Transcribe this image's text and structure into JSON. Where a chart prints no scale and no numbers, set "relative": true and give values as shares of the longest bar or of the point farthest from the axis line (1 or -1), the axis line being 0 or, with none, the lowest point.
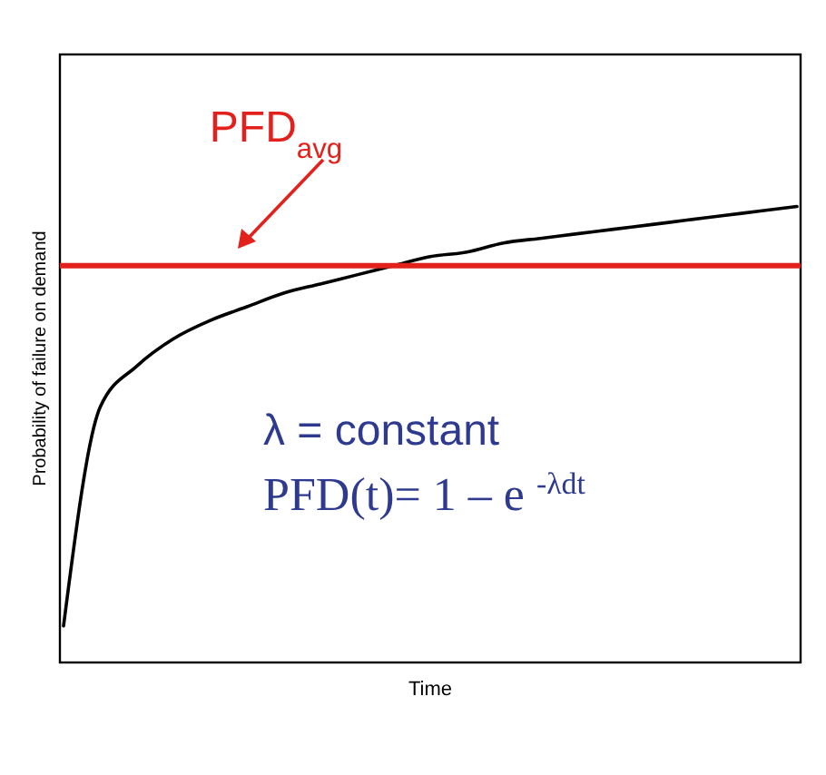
{
  "chart_data": {
    "type": "line",
    "relative": true,
    "xlabel": "Time",
    "ylabel": "Probability of failure on demand",
    "categories": [
      null,
      null,
      null,
      null,
      null,
      null,
      null,
      null,
      null,
      null,
      null,
      null,
      null,
      null,
      null,
      null,
      null,
      null,
      null,
      null,
      null
    ],
    "series": [
      {
        "color": "#000000",
        "values": [
          0.08,
          0.56,
          0.65,
          0.71,
          0.75,
          0.78,
          0.81,
          0.83,
          0.85,
          0.87,
          0.89,
          0.9,
          0.92,
          0.93,
          0.94,
          0.95,
          0.96,
          0.97,
          0.98,
          0.99,
          1
        ]
      }
    ],
    "ref_lines": [
      {
        "axis": "y",
        "value": 0.87,
        "label": "PFD$_{avg}$",
        "color": "#e3211c"
      }
    ],
    "annotations": [
      "λ = constant",
      "PFD(t)= 1 – e $^{-λdt}$"
    ],
    "line_style": "solid"
  }
}
